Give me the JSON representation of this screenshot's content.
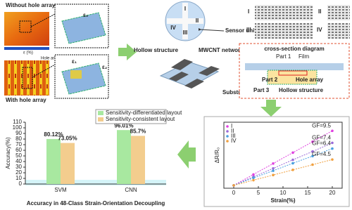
{
  "diagram": {
    "without": "Without hole array",
    "with": "With hole array",
    "hole_area": "Hole area",
    "eps_axis": "ε (%)",
    "eps0": "ε₀",
    "eps1": "ε₁",
    "eps2": "ε₂",
    "sensor_unit": "Sensor unit",
    "hollow": "Hollow structure",
    "mwcnt": "MWCNT network",
    "substrate": "Substrate",
    "sensor_ids": [
      "I",
      "II",
      "III",
      "IV"
    ],
    "panel_ids": [
      "I",
      "II",
      "III",
      "IV"
    ],
    "cross_title": "cross-section diagram",
    "part1": "Part 1",
    "film": "Film",
    "part2": "Part 2",
    "hole_array": "Hole array",
    "part3": "Part 3",
    "hollow2": "Hollow structure"
  },
  "chart_data": [
    {
      "type": "bar",
      "title": "Accuracy in 48-Class Strain-Orientation Decoupling",
      "y_label": "Accuracy(%)",
      "categories": [
        "SVM",
        "CNN"
      ],
      "series": [
        {
          "name": "Sensitivity-differentiated layout",
          "color": "#a8e8a0",
          "values": [
            80.12,
            96.01
          ],
          "value_labels": [
            "80.12%",
            "96.01%"
          ]
        },
        {
          "name": "Sensitivity-consistent layout",
          "color": "#f3cd8e",
          "values": [
            73.05,
            85.7
          ],
          "value_labels": [
            "73.05%",
            "85.7%"
          ]
        }
      ],
      "ylim": [
        0,
        110
      ],
      "yticks": [
        0,
        10,
        20,
        30,
        40,
        50,
        60,
        70,
        80,
        90,
        100,
        110
      ],
      "legend": "upper-right"
    },
    {
      "type": "line",
      "x_label": "Strain(%)",
      "y_label": "ΔR/R₀",
      "x": [
        0,
        4,
        8,
        12,
        16,
        20
      ],
      "series": [
        {
          "name": "I",
          "color": "#e040e0",
          "values": [
            0,
            0.38,
            0.76,
            1.14,
            1.52,
            1.9
          ],
          "annotation": "GF=9.5"
        },
        {
          "name": "II",
          "color": "#9a6ad8",
          "values": [
            0,
            0.3,
            0.59,
            0.89,
            1.18,
            1.48
          ],
          "annotation": "GF=7.4"
        },
        {
          "name": "III",
          "color": "#4aa0e0",
          "values": [
            0,
            0.26,
            0.51,
            0.77,
            1.02,
            1.28
          ],
          "annotation": "GF=6.4"
        },
        {
          "name": "IV",
          "color": "#f0a040",
          "values": [
            0,
            0.18,
            0.36,
            0.54,
            0.72,
            0.9
          ],
          "annotation": "GF=4.5"
        }
      ],
      "xlim": [
        -2,
        22
      ],
      "xticks": [
        0,
        5,
        10,
        15,
        20
      ],
      "ylim": [
        -0.1,
        2.2
      ],
      "legend": "upper-left"
    }
  ]
}
